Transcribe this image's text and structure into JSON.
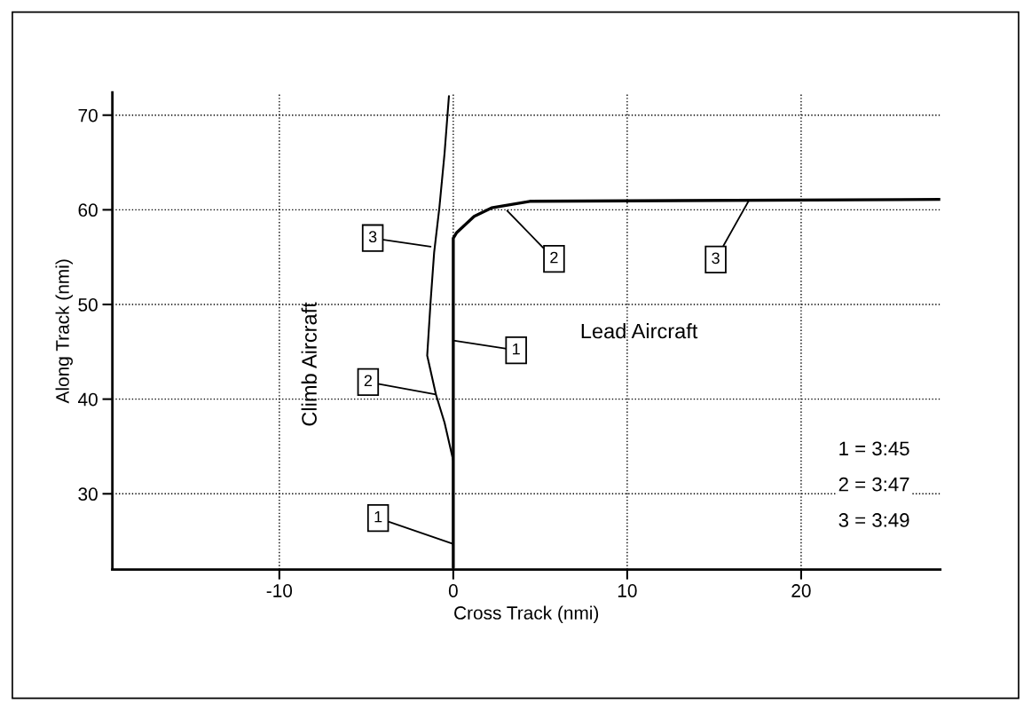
{
  "chart_data": {
    "type": "line",
    "xlabel": "Cross Track (nmi)",
    "ylabel": "Along Track (nmi)",
    "xlim": [
      -19.6,
      28
    ],
    "ylim": [
      22,
      72.4
    ],
    "xticks": [
      -10,
      0,
      10,
      20
    ],
    "yticks": [
      30,
      40,
      50,
      60,
      70
    ],
    "grid": true,
    "legend": false,
    "marker": "none",
    "line_style": "solid",
    "series": [
      {
        "color": "#000000",
        "x": [
          0,
          0,
          0.2,
          1.2,
          2.2,
          4.4,
          28
        ],
        "values": [
          22.2,
          57,
          57.6,
          59.3,
          60.2,
          60.9,
          61.1
        ]
      },
      {
        "color": "#000000",
        "x": [
          0,
          0,
          -0.5,
          -1.0,
          -1.5,
          -1.3,
          -1.1,
          -0.8,
          -0.5,
          -0.25
        ],
        "values": [
          24.5,
          33.5,
          37.5,
          40.5,
          44.6,
          50.4,
          55.5,
          60.2,
          66,
          72
        ]
      }
    ],
    "annotations": [
      {
        "text": "1",
        "x": 0,
        "y": 24.7
      },
      {
        "text": "2",
        "x": -1.0,
        "y": 40.5
      },
      {
        "text": "3",
        "x": -1.3,
        "y": 56.1
      },
      {
        "text": "1",
        "x": 0,
        "y": 46.2
      },
      {
        "text": "2",
        "x": 3.1,
        "y": 59.9
      },
      {
        "text": "3",
        "x": 17.0,
        "y": 61.0
      },
      "Lead Aircraft",
      "Climb Aircraft",
      "1 = 3:45",
      "2 = 3:47",
      "3 = 3:49"
    ]
  }
}
